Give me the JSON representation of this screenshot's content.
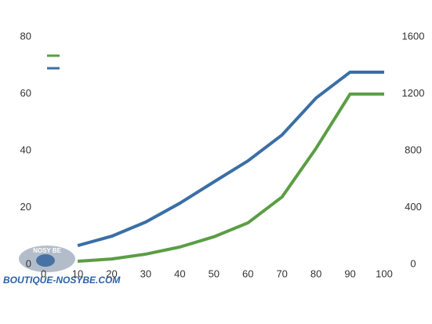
{
  "chart_data": {
    "type": "line",
    "x": [
      10,
      20,
      30,
      40,
      50,
      60,
      70,
      80,
      90,
      100
    ],
    "series": [
      {
        "color": "#5a9e44",
        "values": [
          1.1,
          1.9,
          3.6,
          6.1,
          9.7,
          14.6,
          23.7,
          40.8,
          59.9,
          59.9
        ]
      },
      {
        "color": "#3a6fa5",
        "axis": "y2",
        "values": [
          132,
          198,
          298,
          430,
          580,
          728,
          910,
          1170,
          1352,
          1352
        ]
      }
    ],
    "xlim": [
      0,
      100
    ],
    "xticks": [
      0,
      10,
      20,
      30,
      40,
      50,
      60,
      70,
      80,
      90,
      100
    ],
    "ylim": [
      0,
      80
    ],
    "yticks": [
      0,
      20,
      40,
      60,
      80
    ],
    "y2lim": [
      0,
      1600
    ],
    "y2ticks": [
      0,
      400,
      800,
      1200,
      1600
    ],
    "legend": "top-left"
  },
  "watermark": {
    "logo": "NOSY BE",
    "text": "BOUTIQUE-NOSYBE.COM"
  }
}
